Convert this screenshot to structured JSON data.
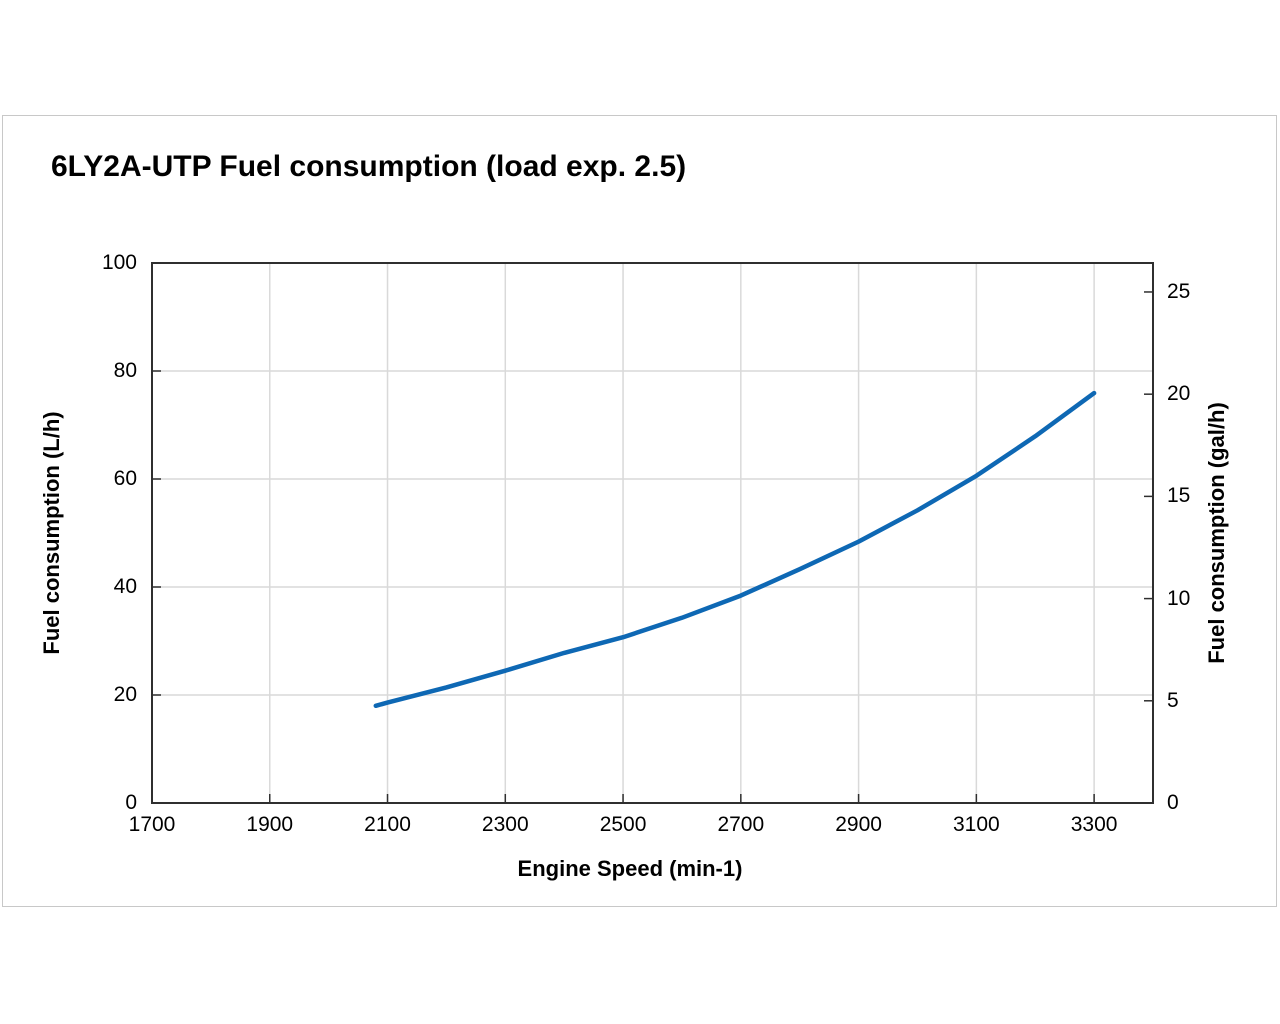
{
  "chart_data": {
    "type": "line",
    "title": "6LY2A-UTP Fuel consumption (load exp. 2.5)",
    "xlabel": "Engine Speed (min-1)",
    "ylabel_left": "Fuel consumption (L/h)",
    "ylabel_right": "Fuel consumption (gal/h)",
    "xlim": [
      1700,
      3400
    ],
    "ylim_left": [
      0,
      100
    ],
    "x_ticks": [
      1700,
      1900,
      2100,
      2300,
      2500,
      2700,
      2900,
      3100,
      3300
    ],
    "y_ticks_left": [
      0,
      20,
      40,
      60,
      80,
      100
    ],
    "y_ticks_right": [
      0,
      5,
      10,
      15,
      20,
      25
    ],
    "liters_per_gallon": 3.78541,
    "grid": true,
    "legend": "none",
    "series": [
      {
        "name": "Fuel consumption",
        "color": "#0e68b4",
        "points_rpm_lph": [
          [
            2080,
            18.0
          ],
          [
            2100,
            18.6
          ],
          [
            2200,
            21.4
          ],
          [
            2300,
            24.5
          ],
          [
            2400,
            27.8
          ],
          [
            2500,
            30.7
          ],
          [
            2600,
            34.3
          ],
          [
            2700,
            38.4
          ],
          [
            2800,
            43.3
          ],
          [
            2900,
            48.4
          ],
          [
            3000,
            54.2
          ],
          [
            3100,
            60.6
          ],
          [
            3200,
            67.9
          ],
          [
            3300,
            75.9
          ]
        ]
      }
    ],
    "colors": {
      "grid": "#d9d9d9",
      "axis": "#2f2f2f",
      "panel_border": "#c8c8c8",
      "text": "#000000",
      "background": "#ffffff"
    }
  }
}
